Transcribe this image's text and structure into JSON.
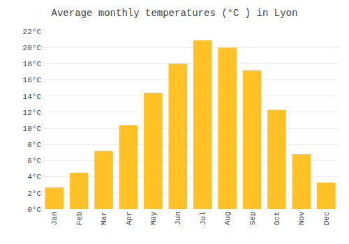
{
  "chart_data": {
    "type": "bar",
    "title": "Average monthly temperatures (°C ) in Lyon",
    "categories": [
      "Jan",
      "Feb",
      "Mar",
      "Apr",
      "May",
      "Jun",
      "Jul",
      "Aug",
      "Sep",
      "Oct",
      "Nov",
      "Dec"
    ],
    "values": [
      2.7,
      4.5,
      7.2,
      10.4,
      14.4,
      18.0,
      20.9,
      20.0,
      17.2,
      12.3,
      6.8,
      3.3
    ],
    "color": "#FFC125",
    "ylim": [
      0,
      22
    ],
    "yticks": [
      {
        "value": 0,
        "label": "0°C"
      },
      {
        "value": 2,
        "label": "2°C"
      },
      {
        "value": 4,
        "label": "4°C"
      },
      {
        "value": 6,
        "label": "6°C"
      },
      {
        "value": 8,
        "label": "8°C"
      },
      {
        "value": 10,
        "label": "10°C"
      },
      {
        "value": 12,
        "label": "12°C"
      },
      {
        "value": 14,
        "label": "14°C"
      },
      {
        "value": 16,
        "label": "16°C"
      },
      {
        "value": 18,
        "label": "18°C"
      },
      {
        "value": 20,
        "label": "20°C"
      },
      {
        "value": 22,
        "label": "22°C"
      }
    ],
    "grid": true
  }
}
